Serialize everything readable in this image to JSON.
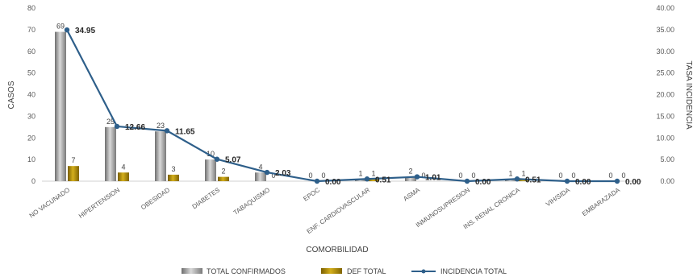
{
  "chart_data": {
    "type": "bar",
    "categories": [
      "NO VACUNADO",
      "HIPERTENSION",
      "OBESIDAD",
      "DIABETES",
      "TABAQUISMO",
      "EPOC",
      "ENF. CARDIOVASCULAR",
      "ASMA",
      "INMUNOSUPRESION",
      "INS. RENAL CRONICA",
      "VIH/SIDA",
      "EMBARAZADA"
    ],
    "series": [
      {
        "name": "TOTAL CONFIRMADOS",
        "type": "bar",
        "axis": "left",
        "color": "#8c8c8c",
        "values": [
          69,
          25,
          23,
          10,
          4,
          0,
          1,
          2,
          0,
          1,
          0,
          0
        ]
      },
      {
        "name": "DEF TOTAL",
        "type": "bar",
        "axis": "left",
        "color": "#a8860a",
        "values": [
          7,
          4,
          3,
          2,
          0,
          0,
          1,
          0,
          0,
          1,
          0,
          0
        ]
      },
      {
        "name": "INCIDENCIA TOTAL",
        "type": "line",
        "axis": "right",
        "color": "#2e5f8a",
        "values": [
          34.95,
          12.66,
          11.65,
          5.07,
          2.03,
          0.0,
          0.51,
          1.01,
          0.0,
          0.51,
          0.0,
          0.0
        ]
      }
    ],
    "incidence_labels": [
      "34.95",
      "12.66",
      "11.65",
      "5.07",
      "2.03",
      "0.00",
      "0.51",
      "1.01",
      "0.00",
      "0.51",
      "0.00",
      "0.00"
    ],
    "xlabel": "COMORBILIDAD",
    "ylabel": "CASOS",
    "y2label": "TASA INCIDENCIA",
    "ylim": [
      0,
      80
    ],
    "y2lim": [
      0,
      40
    ],
    "yticks": [
      "0",
      "10",
      "20",
      "30",
      "40",
      "50",
      "60",
      "70",
      "80"
    ],
    "y2ticks": [
      "0.00",
      "5.00",
      "10.00",
      "15.00",
      "20.00",
      "25.00",
      "30.00",
      "35.00",
      "40.00"
    ],
    "grid": false,
    "legend_position": "bottom"
  }
}
